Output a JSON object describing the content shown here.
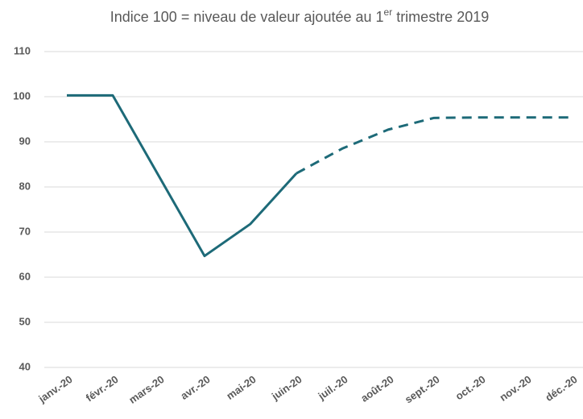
{
  "chart_data": {
    "type": "line",
    "title": [
      "Indice 100 = niveau de valeur ajoutée au 1",
      "er",
      " trimestre 2019"
    ],
    "categories": [
      "janv.-20",
      "févr.-20",
      "mars-20",
      "avr.-20",
      "mai-20",
      "juin-20",
      "juil.-20",
      "août-20",
      "sept.-20",
      "oct.-20",
      "nov.-20",
      "déc.-20"
    ],
    "series": [
      {
        "color": "#1d6a78",
        "style": "solid",
        "values": [
          100.3,
          100.3,
          82.5,
          64.7,
          71.8,
          83,
          null,
          null,
          null,
          null,
          null,
          null
        ]
      },
      {
        "color": "#1d6a78",
        "style": "dashed",
        "values": [
          null,
          null,
          null,
          null,
          null,
          83,
          88.5,
          92.7,
          95.3,
          95.4,
          95.4,
          95.4
        ]
      }
    ],
    "ylim": [
      40,
      110
    ],
    "yticks": [
      40,
      50,
      60,
      70,
      80,
      90,
      100,
      110
    ],
    "grid": true
  }
}
